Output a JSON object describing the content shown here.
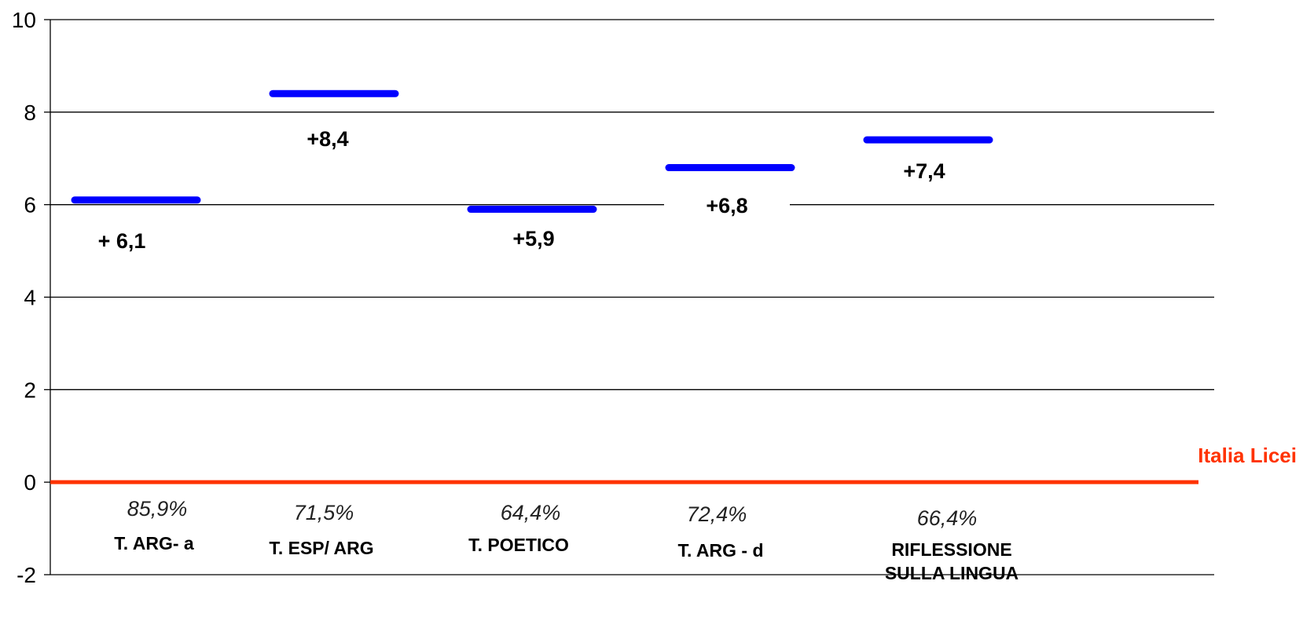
{
  "chart_data": {
    "type": "scatter",
    "marker": "horizontal-bar",
    "series_color": "#0000ff",
    "ylim": [
      -2,
      10
    ],
    "yticks": [
      "10",
      "8",
      "6",
      "4",
      "2",
      "0",
      "-2"
    ],
    "grid": true,
    "categories": [
      {
        "label_lines": [
          "T. ARG- a"
        ],
        "value": 6.1,
        "value_label": "+ 6,1",
        "percent_label": "85,9%"
      },
      {
        "label_lines": [
          "T. ESP/ ARG"
        ],
        "value": 8.4,
        "value_label": "+8,4",
        "percent_label": "71,5%"
      },
      {
        "label_lines": [
          "T. POETICO"
        ],
        "value": 5.9,
        "value_label": "+5,9",
        "percent_label": "64,4%"
      },
      {
        "label_lines": [
          "T. ARG - d"
        ],
        "value": 6.8,
        "value_label": "+6,8",
        "percent_label": "72,4%"
      },
      {
        "label_lines": [
          "RIFLESSIONE",
          "SULLA LINGUA"
        ],
        "value": 7.4,
        "value_label": "+7,4",
        "percent_label": "66,4%"
      }
    ],
    "reference_line": {
      "value": 0,
      "label": "Italia Licei",
      "color": "#ff3300"
    }
  }
}
